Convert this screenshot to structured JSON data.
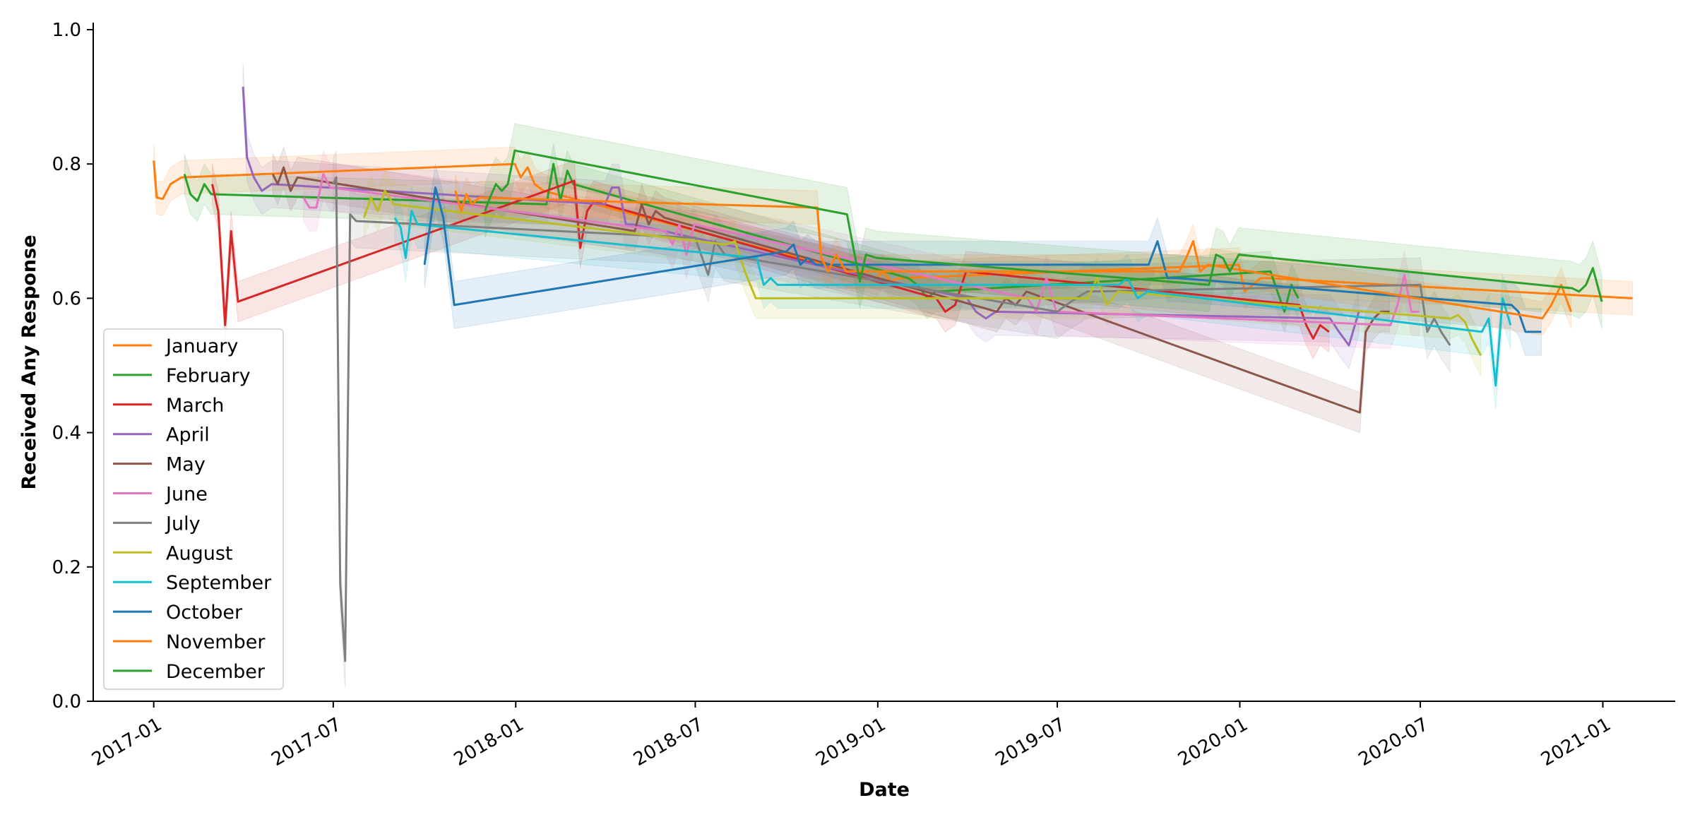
{
  "chart_data": {
    "type": "line",
    "title": "",
    "xlabel": "Date",
    "ylabel": "Received Any Response",
    "x_axis_type": "date",
    "xlim": [
      "2016-11-01",
      "2021-03-15"
    ],
    "ylim": [
      0.0,
      1.0
    ],
    "x_ticks": [
      "2017-01",
      "2017-07",
      "2018-01",
      "2018-07",
      "2019-01",
      "2019-07",
      "2020-01",
      "2020-07",
      "2021-01"
    ],
    "y_ticks": [
      "0.0",
      "0.2",
      "0.4",
      "0.6",
      "0.8",
      "1.0"
    ],
    "grid": false,
    "legend_position": "lower-left",
    "confidence_band": true,
    "series": [
      {
        "name": "January",
        "color": "#ff7f0e",
        "ci": 0.025,
        "points": [
          [
            "2017-01-01",
            0.805
          ],
          [
            "2017-01-04",
            0.75
          ],
          [
            "2017-01-10",
            0.748
          ],
          [
            "2017-01-18",
            0.77
          ],
          [
            "2017-01-29",
            0.78
          ],
          [
            "2017-12-31",
            0.8
          ],
          [
            "2018-01-06",
            0.78
          ],
          [
            "2018-01-13",
            0.795
          ],
          [
            "2018-01-20",
            0.77
          ],
          [
            "2018-01-29",
            0.76
          ],
          [
            "2018-12-31",
            0.63
          ],
          [
            "2019-01-06",
            0.64
          ],
          [
            "2019-01-14",
            0.625
          ],
          [
            "2019-01-22",
            0.63
          ],
          [
            "2019-12-31",
            0.65
          ],
          [
            "2020-01-06",
            0.61
          ],
          [
            "2020-01-14",
            0.62
          ],
          [
            "2020-01-22",
            0.63
          ],
          [
            "2020-01-30",
            0.63
          ],
          [
            "2021-01-31",
            0.6
          ]
        ]
      },
      {
        "name": "February",
        "color": "#2ca02c",
        "ci": 0.03,
        "points": [
          [
            "2017-02-01",
            0.785
          ],
          [
            "2017-02-07",
            0.755
          ],
          [
            "2017-02-14",
            0.745
          ],
          [
            "2017-02-21",
            0.77
          ],
          [
            "2017-02-28",
            0.755
          ],
          [
            "2018-02-01",
            0.74
          ],
          [
            "2018-02-08",
            0.8
          ],
          [
            "2018-02-15",
            0.745
          ],
          [
            "2018-02-22",
            0.79
          ],
          [
            "2018-02-28",
            0.77
          ],
          [
            "2019-02-01",
            0.63
          ],
          [
            "2019-02-10",
            0.62
          ],
          [
            "2019-02-20",
            0.6
          ],
          [
            "2019-02-28",
            0.61
          ],
          [
            "2020-02-01",
            0.64
          ],
          [
            "2020-02-08",
            0.61
          ],
          [
            "2020-02-15",
            0.58
          ],
          [
            "2020-02-22",
            0.62
          ],
          [
            "2020-02-29",
            0.6
          ]
        ]
      },
      {
        "name": "March",
        "color": "#d62728",
        "ci": 0.03,
        "points": [
          [
            "2017-03-01",
            0.77
          ],
          [
            "2017-03-07",
            0.73
          ],
          [
            "2017-03-14",
            0.56
          ],
          [
            "2017-03-20",
            0.7
          ],
          [
            "2017-03-27",
            0.595
          ],
          [
            "2018-03-01",
            0.775
          ],
          [
            "2018-03-07",
            0.675
          ],
          [
            "2018-03-14",
            0.73
          ],
          [
            "2018-03-21",
            0.745
          ],
          [
            "2018-03-31",
            0.74
          ],
          [
            "2019-03-01",
            0.6
          ],
          [
            "2019-03-10",
            0.58
          ],
          [
            "2019-03-20",
            0.59
          ],
          [
            "2019-03-31",
            0.64
          ],
          [
            "2020-03-01",
            0.59
          ],
          [
            "2020-03-08",
            0.56
          ],
          [
            "2020-03-15",
            0.54
          ],
          [
            "2020-03-22",
            0.56
          ],
          [
            "2020-03-31",
            0.55
          ]
        ]
      },
      {
        "name": "April",
        "color": "#9467bd",
        "ci": 0.035,
        "points": [
          [
            "2017-04-01",
            0.915
          ],
          [
            "2017-04-05",
            0.81
          ],
          [
            "2017-04-12",
            0.78
          ],
          [
            "2017-04-20",
            0.76
          ],
          [
            "2017-04-30",
            0.77
          ],
          [
            "2018-04-01",
            0.74
          ],
          [
            "2018-04-08",
            0.765
          ],
          [
            "2018-04-15",
            0.765
          ],
          [
            "2018-04-22",
            0.71
          ],
          [
            "2018-04-30",
            0.71
          ],
          [
            "2019-04-01",
            0.6
          ],
          [
            "2019-04-10",
            0.58
          ],
          [
            "2019-04-20",
            0.57
          ],
          [
            "2019-04-30",
            0.58
          ],
          [
            "2020-04-01",
            0.57
          ],
          [
            "2020-04-10",
            0.55
          ],
          [
            "2020-04-20",
            0.53
          ],
          [
            "2020-04-30",
            0.58
          ]
        ]
      },
      {
        "name": "May",
        "color": "#8c564b",
        "ci": 0.03,
        "points": [
          [
            "2017-05-01",
            0.785
          ],
          [
            "2017-05-06",
            0.77
          ],
          [
            "2017-05-12",
            0.795
          ],
          [
            "2017-05-19",
            0.76
          ],
          [
            "2017-05-26",
            0.78
          ],
          [
            "2018-05-01",
            0.7
          ],
          [
            "2018-05-08",
            0.74
          ],
          [
            "2018-05-15",
            0.71
          ],
          [
            "2018-05-22",
            0.73
          ],
          [
            "2018-05-31",
            0.72
          ],
          [
            "2019-05-01",
            0.58
          ],
          [
            "2019-05-10",
            0.6
          ],
          [
            "2019-05-20",
            0.59
          ],
          [
            "2019-05-31",
            0.61
          ],
          [
            "2020-05-01",
            0.43
          ],
          [
            "2020-05-07",
            0.55
          ],
          [
            "2020-05-15",
            0.57
          ],
          [
            "2020-05-22",
            0.58
          ],
          [
            "2020-05-31",
            0.58
          ]
        ]
      },
      {
        "name": "June",
        "color": "#e377c2",
        "ci": 0.035,
        "points": [
          [
            "2017-06-01",
            0.75
          ],
          [
            "2017-06-07",
            0.735
          ],
          [
            "2017-06-14",
            0.735
          ],
          [
            "2017-06-21",
            0.785
          ],
          [
            "2017-06-28",
            0.765
          ],
          [
            "2018-06-01",
            0.7
          ],
          [
            "2018-06-08",
            0.68
          ],
          [
            "2018-06-15",
            0.71
          ],
          [
            "2018-06-22",
            0.665
          ],
          [
            "2018-06-30",
            0.71
          ],
          [
            "2019-06-01",
            0.6
          ],
          [
            "2019-06-10",
            0.58
          ],
          [
            "2019-06-20",
            0.63
          ],
          [
            "2019-06-30",
            0.58
          ],
          [
            "2020-06-01",
            0.56
          ],
          [
            "2020-06-08",
            0.59
          ],
          [
            "2020-06-15",
            0.635
          ],
          [
            "2020-06-22",
            0.58
          ],
          [
            "2020-06-30",
            0.58
          ]
        ]
      },
      {
        "name": "July",
        "color": "#7f7f7f",
        "ci": 0.04,
        "points": [
          [
            "2017-07-01",
            0.77
          ],
          [
            "2017-07-04",
            0.78
          ],
          [
            "2017-07-08",
            0.175
          ],
          [
            "2017-07-13",
            0.06
          ],
          [
            "2017-07-18",
            0.725
          ],
          [
            "2017-07-24",
            0.715
          ],
          [
            "2018-07-01",
            0.69
          ],
          [
            "2018-07-08",
            0.66
          ],
          [
            "2018-07-14",
            0.635
          ],
          [
            "2018-07-21",
            0.685
          ],
          [
            "2018-07-31",
            0.665
          ],
          [
            "2019-07-01",
            0.58
          ],
          [
            "2019-07-10",
            0.59
          ],
          [
            "2019-07-20",
            0.6
          ],
          [
            "2019-07-31",
            0.61
          ],
          [
            "2020-07-01",
            0.62
          ],
          [
            "2020-07-08",
            0.55
          ],
          [
            "2020-07-15",
            0.57
          ],
          [
            "2020-07-22",
            0.55
          ],
          [
            "2020-07-31",
            0.53
          ]
        ]
      },
      {
        "name": "August",
        "color": "#bcbd22",
        "ci": 0.03,
        "points": [
          [
            "2017-08-01",
            0.72
          ],
          [
            "2017-08-08",
            0.75
          ],
          [
            "2017-08-15",
            0.73
          ],
          [
            "2017-08-22",
            0.76
          ],
          [
            "2017-08-31",
            0.74
          ],
          [
            "2018-08-01",
            0.68
          ],
          [
            "2018-08-10",
            0.685
          ],
          [
            "2018-08-20",
            0.64
          ],
          [
            "2018-08-31",
            0.6
          ],
          [
            "2019-08-01",
            0.6
          ],
          [
            "2019-08-10",
            0.63
          ],
          [
            "2019-08-20",
            0.59
          ],
          [
            "2019-08-31",
            0.61
          ],
          [
            "2020-08-01",
            0.57
          ],
          [
            "2020-08-08",
            0.575
          ],
          [
            "2020-08-15",
            0.565
          ],
          [
            "2020-08-22",
            0.54
          ],
          [
            "2020-08-31",
            0.515
          ]
        ]
      },
      {
        "name": "September",
        "color": "#17becf",
        "ci": 0.035,
        "points": [
          [
            "2017-09-01",
            0.72
          ],
          [
            "2017-09-07",
            0.705
          ],
          [
            "2017-09-12",
            0.66
          ],
          [
            "2017-09-18",
            0.73
          ],
          [
            "2017-09-24",
            0.71
          ],
          [
            "2018-09-01",
            0.66
          ],
          [
            "2018-09-08",
            0.62
          ],
          [
            "2018-09-15",
            0.63
          ],
          [
            "2018-09-22",
            0.62
          ],
          [
            "2018-09-30",
            0.62
          ],
          [
            "2019-09-01",
            0.62
          ],
          [
            "2019-09-10",
            0.63
          ],
          [
            "2019-09-20",
            0.6
          ],
          [
            "2019-09-30",
            0.61
          ],
          [
            "2020-09-01",
            0.55
          ],
          [
            "2020-09-08",
            0.57
          ],
          [
            "2020-09-15",
            0.47
          ],
          [
            "2020-09-22",
            0.6
          ],
          [
            "2020-09-30",
            0.56
          ]
        ]
      },
      {
        "name": "October",
        "color": "#1f77b4",
        "ci": 0.035,
        "points": [
          [
            "2017-10-01",
            0.65
          ],
          [
            "2017-10-12",
            0.765
          ],
          [
            "2017-10-20",
            0.72
          ],
          [
            "2017-10-31",
            0.59
          ],
          [
            "2018-10-01",
            0.67
          ],
          [
            "2018-10-08",
            0.68
          ],
          [
            "2018-10-15",
            0.65
          ],
          [
            "2018-10-22",
            0.66
          ],
          [
            "2018-10-31",
            0.65
          ],
          [
            "2019-10-01",
            0.65
          ],
          [
            "2019-10-10",
            0.685
          ],
          [
            "2019-10-20",
            0.63
          ],
          [
            "2019-10-31",
            0.63
          ],
          [
            "2020-10-01",
            0.59
          ],
          [
            "2020-10-08",
            0.58
          ],
          [
            "2020-10-15",
            0.55
          ],
          [
            "2020-10-31",
            0.55
          ]
        ]
      },
      {
        "name": "November",
        "color": "#ff7f0e",
        "ci": 0.025,
        "points": [
          [
            "2017-11-01",
            0.76
          ],
          [
            "2017-11-07",
            0.73
          ],
          [
            "2017-11-12",
            0.755
          ],
          [
            "2017-11-18",
            0.74
          ],
          [
            "2017-11-25",
            0.75
          ],
          [
            "2018-11-01",
            0.735
          ],
          [
            "2018-11-05",
            0.66
          ],
          [
            "2018-11-12",
            0.64
          ],
          [
            "2018-11-20",
            0.665
          ],
          [
            "2018-11-30",
            0.64
          ],
          [
            "2019-11-01",
            0.64
          ],
          [
            "2019-11-08",
            0.66
          ],
          [
            "2019-11-15",
            0.685
          ],
          [
            "2019-11-22",
            0.64
          ],
          [
            "2019-11-30",
            0.65
          ],
          [
            "2020-11-01",
            0.57
          ],
          [
            "2020-11-10",
            0.59
          ],
          [
            "2020-11-20",
            0.62
          ],
          [
            "2020-11-30",
            0.58
          ]
        ]
      },
      {
        "name": "December",
        "color": "#2ca02c",
        "ci": 0.04,
        "points": [
          [
            "2017-12-01",
            0.73
          ],
          [
            "2017-12-06",
            0.75
          ],
          [
            "2017-12-12",
            0.77
          ],
          [
            "2017-12-18",
            0.76
          ],
          [
            "2017-12-24",
            0.77
          ],
          [
            "2017-12-31",
            0.82
          ],
          [
            "2018-12-01",
            0.725
          ],
          [
            "2018-12-08",
            0.67
          ],
          [
            "2018-12-14",
            0.625
          ],
          [
            "2018-12-20",
            0.665
          ],
          [
            "2018-12-31",
            0.66
          ],
          [
            "2019-12-01",
            0.62
          ],
          [
            "2019-12-08",
            0.665
          ],
          [
            "2019-12-15",
            0.66
          ],
          [
            "2019-12-22",
            0.64
          ],
          [
            "2019-12-31",
            0.665
          ],
          [
            "2020-12-01",
            0.615
          ],
          [
            "2020-12-08",
            0.61
          ],
          [
            "2020-12-15",
            0.62
          ],
          [
            "2020-12-22",
            0.645
          ],
          [
            "2020-12-31",
            0.595
          ]
        ]
      }
    ]
  }
}
